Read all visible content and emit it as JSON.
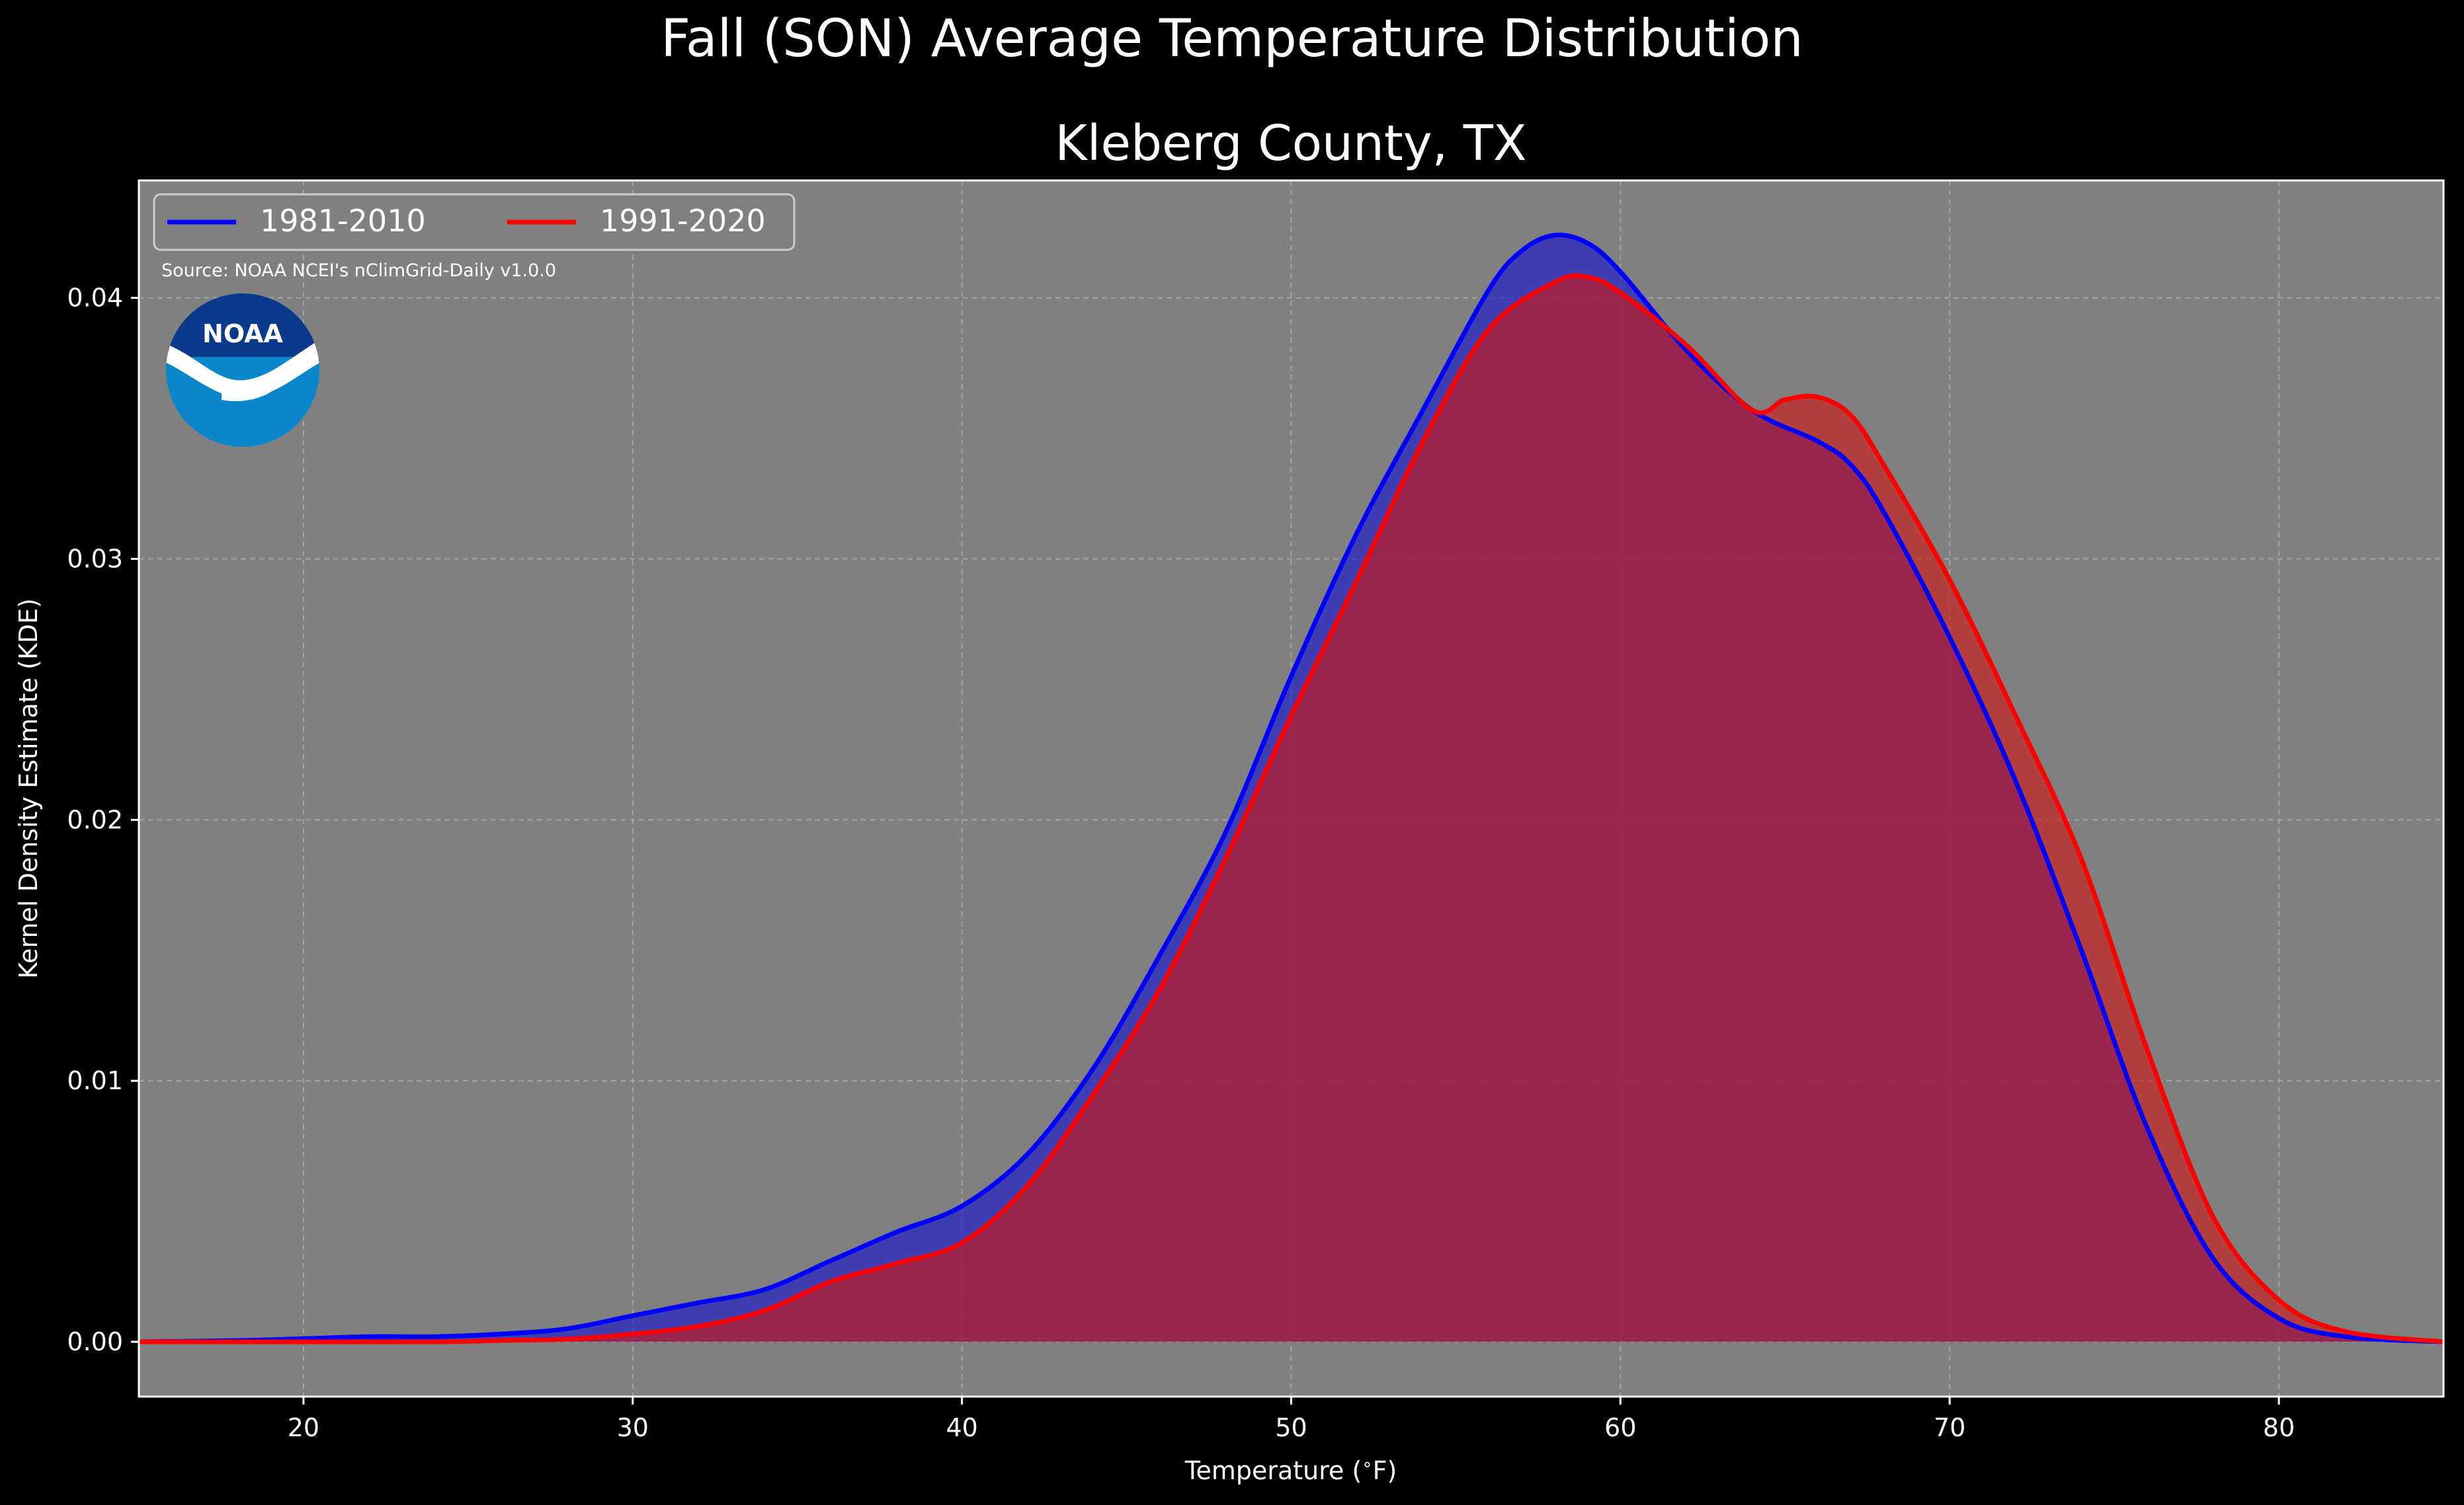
{
  "suptitle": "Fall (SON) Average Temperature Distribution",
  "title": "Kleberg County, TX",
  "source": "Source: NOAA NCEI's nClimGrid-Daily v1.0.0",
  "logo_text": "NOAA",
  "colors": {
    "background": "#000000",
    "plot_bg": "#808080",
    "series1": "#0000ff",
    "series2": "#ff0000",
    "series1_fill": "#1a1acc",
    "series2_fill": "#cc1a1a",
    "noaa_dark": "#0b3a8c",
    "noaa_light": "#0a86cc"
  },
  "chart_data": {
    "type": "area",
    "xlabel": "Temperature ($^\\circ$F)",
    "ylabel": "Kernel Density Estimate (KDE)",
    "xlim": [
      15,
      85
    ],
    "ylim": [
      -0.0021,
      0.0445
    ],
    "xticks": [
      20,
      30,
      40,
      50,
      60,
      70,
      80
    ],
    "yticks": [
      0.0,
      0.01,
      0.02,
      0.03,
      0.04
    ],
    "ytick_labels": [
      "0.00",
      "0.01",
      "0.02",
      "0.03",
      "0.04"
    ],
    "grid": true,
    "legend": "upper-left",
    "series": [
      {
        "name": "1981-2010",
        "color": "#0000ff",
        "points": [
          [
            15,
            0
          ],
          [
            18,
            5e-05
          ],
          [
            20,
            0.00012
          ],
          [
            22,
            0.0002
          ],
          [
            24,
            0.0002
          ],
          [
            26,
            0.0003
          ],
          [
            28,
            0.0005
          ],
          [
            30,
            0.001
          ],
          [
            32,
            0.0015
          ],
          [
            34,
            0.002
          ],
          [
            36,
            0.0031
          ],
          [
            38,
            0.0042
          ],
          [
            40,
            0.0052
          ],
          [
            42,
            0.0072
          ],
          [
            44,
            0.0105
          ],
          [
            46,
            0.0148
          ],
          [
            48,
            0.0195
          ],
          [
            50,
            0.0255
          ],
          [
            52,
            0.031
          ],
          [
            54,
            0.0357
          ],
          [
            56,
            0.0403
          ],
          [
            57,
            0.0418
          ],
          [
            58,
            0.0424
          ],
          [
            59,
            0.0421
          ],
          [
            60,
            0.041
          ],
          [
            62,
            0.038
          ],
          [
            64,
            0.0357
          ],
          [
            66,
            0.0345
          ],
          [
            67,
            0.0336
          ],
          [
            68,
            0.0318
          ],
          [
            70,
            0.027
          ],
          [
            72,
            0.0215
          ],
          [
            74,
            0.015
          ],
          [
            76,
            0.0082
          ],
          [
            78,
            0.0032
          ],
          [
            80,
            0.0009
          ],
          [
            82,
            0.0002
          ],
          [
            85,
            0
          ]
        ]
      },
      {
        "name": "1991-2020",
        "color": "#ff0000",
        "points": [
          [
            15,
            0
          ],
          [
            20,
            0
          ],
          [
            24,
            0
          ],
          [
            26,
            5e-05
          ],
          [
            28,
            0.0001
          ],
          [
            30,
            0.0003
          ],
          [
            32,
            0.0006
          ],
          [
            34,
            0.0012
          ],
          [
            36,
            0.0023
          ],
          [
            38,
            0.003
          ],
          [
            40,
            0.0038
          ],
          [
            42,
            0.006
          ],
          [
            44,
            0.0095
          ],
          [
            46,
            0.0135
          ],
          [
            48,
            0.0185
          ],
          [
            50,
            0.024
          ],
          [
            52,
            0.0292
          ],
          [
            54,
            0.0345
          ],
          [
            56,
            0.0388
          ],
          [
            58,
            0.0406
          ],
          [
            59,
            0.0408
          ],
          [
            60,
            0.0402
          ],
          [
            62,
            0.0382
          ],
          [
            64,
            0.0357
          ],
          [
            65,
            0.0361
          ],
          [
            66,
            0.0362
          ],
          [
            67,
            0.0355
          ],
          [
            68,
            0.0336
          ],
          [
            70,
            0.0292
          ],
          [
            72,
            0.024
          ],
          [
            74,
            0.0185
          ],
          [
            76,
            0.0112
          ],
          [
            78,
            0.0048
          ],
          [
            80,
            0.0016
          ],
          [
            82,
            0.0004
          ],
          [
            85,
            0
          ]
        ]
      }
    ]
  }
}
